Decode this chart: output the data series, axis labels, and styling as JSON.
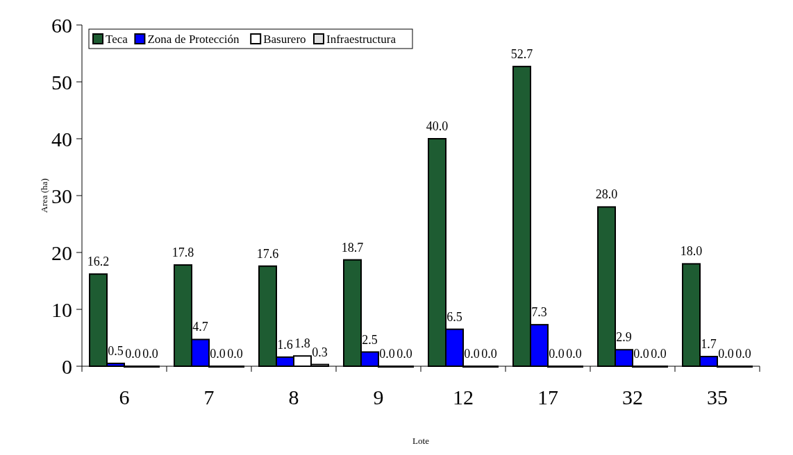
{
  "chart_data": {
    "type": "bar",
    "xlabel": "Lote",
    "ylabel": "Area (ha)",
    "categories": [
      "6",
      "7",
      "8",
      "9",
      "12",
      "17",
      "32",
      "35"
    ],
    "ylim": [
      0,
      60
    ],
    "yticks": [
      0,
      10,
      20,
      30,
      40,
      50,
      60
    ],
    "grid": false,
    "legend": "top left",
    "series": [
      {
        "name": "Teca",
        "color": "#1e5c32",
        "values": [
          16.2,
          17.8,
          17.6,
          18.7,
          40,
          52.7,
          28,
          18
        ],
        "value_labels": [
          "16.2",
          "17.8",
          "17.6",
          "18.7",
          "40.0",
          "52.7",
          "28.0",
          "18.0"
        ]
      },
      {
        "name": "Zona de Protección",
        "color": "#0000ff",
        "values": [
          0.5,
          4.7,
          1.6,
          2.5,
          6.5,
          7.3,
          2.9,
          1.7
        ],
        "value_labels": [
          "0.5",
          "4.7",
          "1.6",
          "2.5",
          "6.5",
          "7.3",
          "2.9",
          "1.7"
        ]
      },
      {
        "name": "Basurero",
        "color": "#ffffff",
        "values": [
          0,
          0,
          1.8,
          0,
          0,
          0,
          0,
          0
        ],
        "value_labels": [
          "0.0",
          "0.0",
          "1.8",
          "0.0",
          "0.0",
          "0.0",
          "0.0",
          "0.0"
        ]
      },
      {
        "name": "Infraestructura",
        "color": "#e0e0e0",
        "values": [
          0,
          0,
          0.3,
          0,
          0,
          0,
          0,
          0
        ],
        "value_labels": [
          "0.0",
          "0.0",
          "0.3",
          "0.0",
          "0.0",
          "0.0",
          "0.0",
          "0.0"
        ]
      }
    ]
  }
}
